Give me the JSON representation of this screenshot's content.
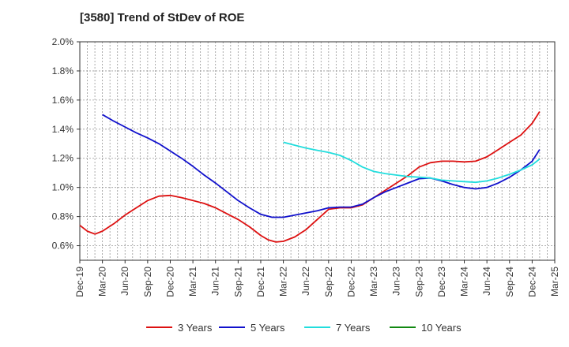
{
  "chart_data": {
    "type": "line",
    "title": "[3580]  Trend of StDev of ROE",
    "xlabel": "",
    "ylabel": "",
    "x_tick_labels": [
      "Dec-19",
      "Mar-20",
      "Jun-20",
      "Sep-20",
      "Dec-20",
      "Mar-21",
      "Jun-21",
      "Sep-21",
      "Dec-21",
      "Mar-22",
      "Jun-22",
      "Sep-22",
      "Dec-22",
      "Mar-23",
      "Jun-23",
      "Sep-23",
      "Dec-23",
      "Mar-24",
      "Jun-24",
      "Sep-24",
      "Dec-24",
      "Mar-25"
    ],
    "y_tick_labels": [
      "0.6%",
      "0.8%",
      "1.0%",
      "1.2%",
      "1.4%",
      "1.6%",
      "1.8%",
      "2.0%"
    ],
    "ylim": [
      0.5,
      2.0
    ],
    "y_ticks": [
      0.6,
      0.8,
      1.0,
      1.2,
      1.4,
      1.6,
      1.8,
      2.0
    ],
    "x_range_quarters": [
      0,
      21
    ],
    "grid": true,
    "legend_position": "bottom",
    "series": [
      {
        "name": "3 Years",
        "color": "#dd1111",
        "points": [
          [
            0,
            0.74
          ],
          [
            0.33,
            0.7
          ],
          [
            0.67,
            0.68
          ],
          [
            1,
            0.7
          ],
          [
            1.5,
            0.75
          ],
          [
            2,
            0.81
          ],
          [
            2.5,
            0.86
          ],
          [
            3,
            0.91
          ],
          [
            3.5,
            0.94
          ],
          [
            4,
            0.945
          ],
          [
            4.5,
            0.93
          ],
          [
            5,
            0.91
          ],
          [
            5.5,
            0.89
          ],
          [
            6,
            0.86
          ],
          [
            6.5,
            0.82
          ],
          [
            7,
            0.78
          ],
          [
            7.5,
            0.73
          ],
          [
            8,
            0.67
          ],
          [
            8.33,
            0.64
          ],
          [
            8.67,
            0.625
          ],
          [
            9,
            0.63
          ],
          [
            9.5,
            0.66
          ],
          [
            10,
            0.71
          ],
          [
            10.5,
            0.78
          ],
          [
            11,
            0.85
          ],
          [
            11.5,
            0.86
          ],
          [
            12,
            0.86
          ],
          [
            12.5,
            0.88
          ],
          [
            13,
            0.93
          ],
          [
            13.5,
            0.98
          ],
          [
            14,
            1.03
          ],
          [
            14.5,
            1.08
          ],
          [
            15,
            1.14
          ],
          [
            15.5,
            1.17
          ],
          [
            16,
            1.18
          ],
          [
            16.5,
            1.18
          ],
          [
            17,
            1.175
          ],
          [
            17.5,
            1.18
          ],
          [
            18,
            1.21
          ],
          [
            18.5,
            1.26
          ],
          [
            19,
            1.31
          ],
          [
            19.5,
            1.36
          ],
          [
            20,
            1.44
          ],
          [
            20.33,
            1.52
          ]
        ]
      },
      {
        "name": "5 Years",
        "color": "#1111cc",
        "points": [
          [
            1,
            1.5
          ],
          [
            1.5,
            1.455
          ],
          [
            2,
            1.415
          ],
          [
            2.5,
            1.375
          ],
          [
            3,
            1.34
          ],
          [
            3.5,
            1.3
          ],
          [
            4,
            1.25
          ],
          [
            4.5,
            1.2
          ],
          [
            5,
            1.145
          ],
          [
            5.5,
            1.085
          ],
          [
            6,
            1.03
          ],
          [
            6.5,
            0.97
          ],
          [
            7,
            0.91
          ],
          [
            7.5,
            0.86
          ],
          [
            8,
            0.815
          ],
          [
            8.5,
            0.795
          ],
          [
            9,
            0.795
          ],
          [
            9.5,
            0.81
          ],
          [
            10,
            0.825
          ],
          [
            10.5,
            0.84
          ],
          [
            11,
            0.86
          ],
          [
            11.5,
            0.865
          ],
          [
            12,
            0.865
          ],
          [
            12.5,
            0.885
          ],
          [
            13,
            0.93
          ],
          [
            13.5,
            0.97
          ],
          [
            14,
            1.0
          ],
          [
            14.5,
            1.03
          ],
          [
            15,
            1.06
          ],
          [
            15.5,
            1.065
          ],
          [
            16,
            1.045
          ],
          [
            16.5,
            1.02
          ],
          [
            17,
            1.0
          ],
          [
            17.5,
            0.99
          ],
          [
            18,
            1.0
          ],
          [
            18.5,
            1.03
          ],
          [
            19,
            1.07
          ],
          [
            19.5,
            1.12
          ],
          [
            20,
            1.18
          ],
          [
            20.33,
            1.26
          ]
        ]
      },
      {
        "name": "7 Years",
        "color": "#22dddd",
        "points": [
          [
            9,
            1.31
          ],
          [
            9.5,
            1.29
          ],
          [
            10,
            1.27
          ],
          [
            10.5,
            1.255
          ],
          [
            11,
            1.24
          ],
          [
            11.5,
            1.22
          ],
          [
            12,
            1.185
          ],
          [
            12.5,
            1.14
          ],
          [
            13,
            1.11
          ],
          [
            13.5,
            1.095
          ],
          [
            14,
            1.085
          ],
          [
            14.5,
            1.075
          ],
          [
            15,
            1.07
          ],
          [
            15.5,
            1.065
          ],
          [
            16,
            1.05
          ],
          [
            16.5,
            1.045
          ],
          [
            17,
            1.04
          ],
          [
            17.5,
            1.035
          ],
          [
            18,
            1.045
          ],
          [
            18.5,
            1.065
          ],
          [
            19,
            1.09
          ],
          [
            19.5,
            1.12
          ],
          [
            20,
            1.155
          ],
          [
            20.33,
            1.195
          ]
        ]
      },
      {
        "name": "10 Years",
        "color": "#118811",
        "points": []
      }
    ]
  }
}
